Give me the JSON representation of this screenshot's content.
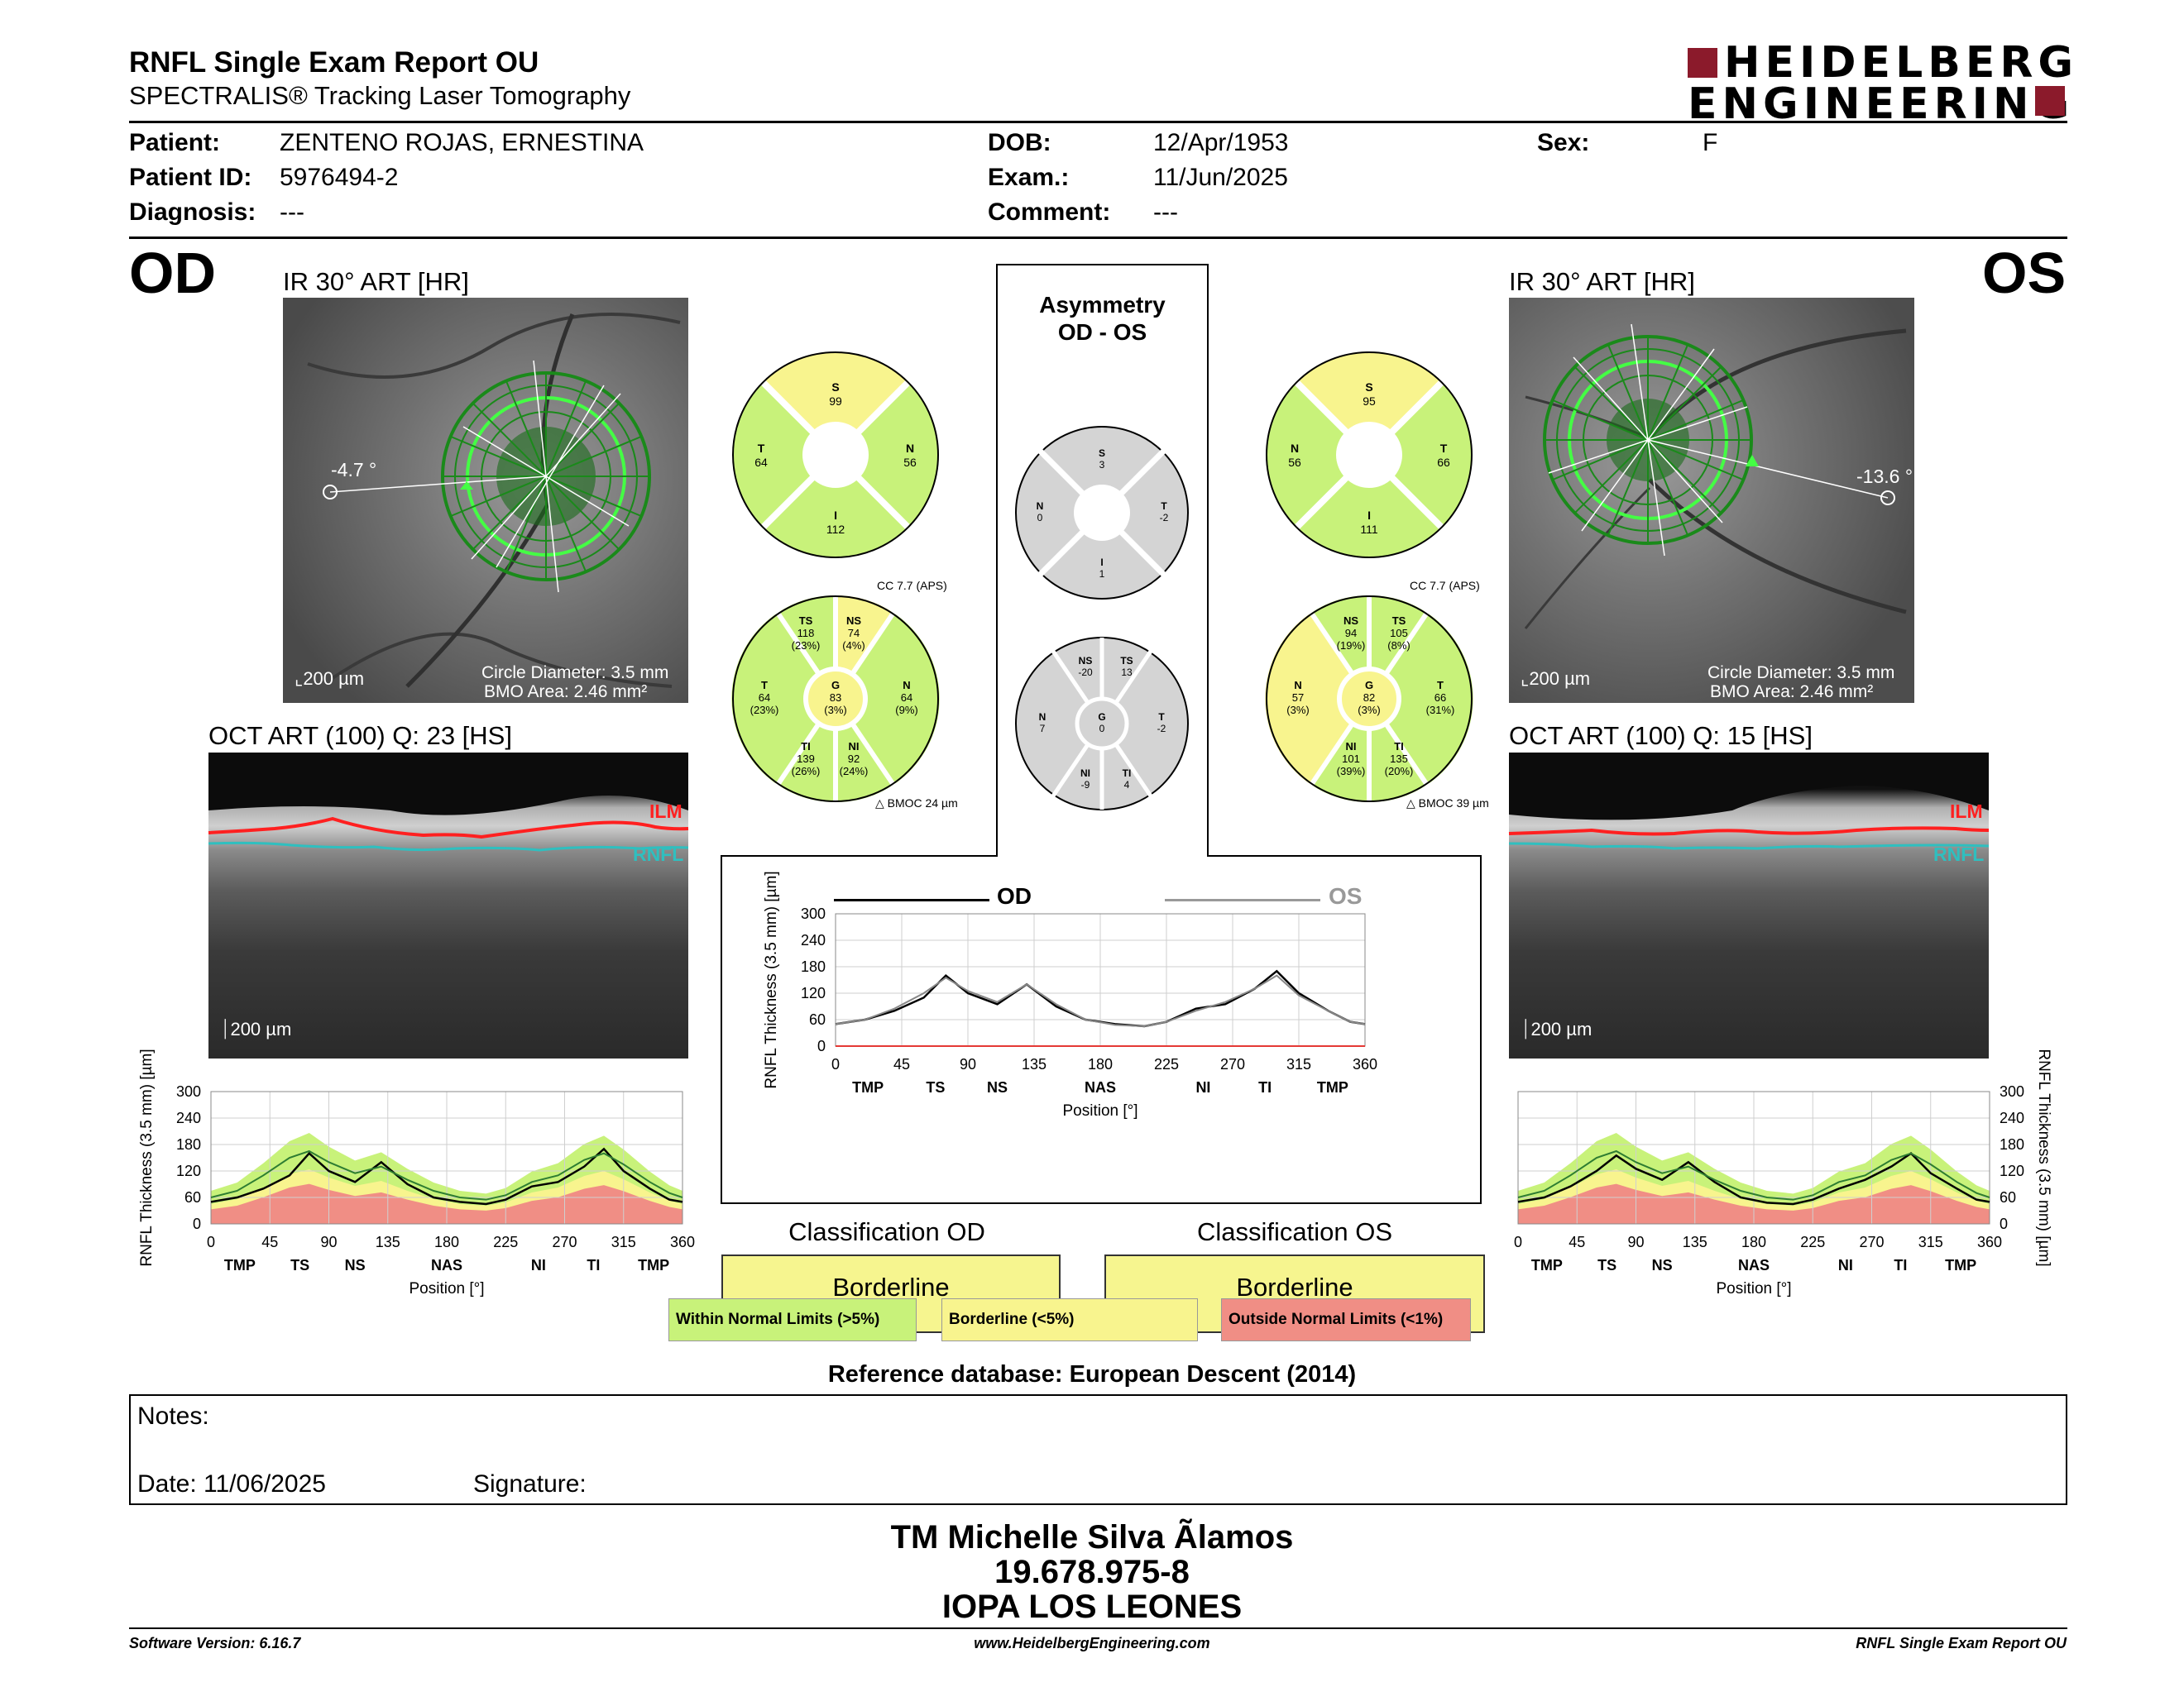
{
  "header": {
    "title": "RNFL Single Exam Report OU",
    "subtitle": "SPECTRALIS® Tracking Laser Tomography",
    "logo_line1": "HEIDELBERG",
    "logo_line2": "ENGINEERING"
  },
  "patient": {
    "patient_label": "Patient:",
    "patient_value": "ZENTENO ROJAS, ERNESTINA",
    "id_label": "Patient ID:",
    "id_value": "5976494-2",
    "diagnosis_label": "Diagnosis:",
    "diagnosis_value": "---",
    "dob_label": "DOB:",
    "dob_value": "12/Apr/1953",
    "exam_label": "Exam.:",
    "exam_value": "11/Jun/2025",
    "comment_label": "Comment:",
    "comment_value": "---",
    "sex_label": "Sex:",
    "sex_value": "F"
  },
  "od": {
    "eye": "OD",
    "ir_title": "IR 30° ART [HR]",
    "angle": "-4.7 °",
    "scale": "200 µm",
    "circle_diameter": "Circle Diameter: 3.5 mm",
    "bmo_area": "BMO Area: 2.46 mm²",
    "oct_title": "OCT ART (100) Q: 23 [HS]",
    "oct_scale": "200 µm",
    "ilm": "ILM",
    "rnfl": "RNFL",
    "sectors4": {
      "S": "99",
      "T": "64",
      "N": "56",
      "I": "112"
    },
    "sectors6": {
      "TS": [
        "118",
        "(23%)"
      ],
      "NS": [
        "74",
        "(4%)"
      ],
      "T": [
        "64",
        "(23%)"
      ],
      "G": [
        "83",
        "(3%)"
      ],
      "N": [
        "64",
        "(9%)"
      ],
      "TI": [
        "139",
        "(26%)"
      ],
      "NI": [
        "92",
        "(24%)"
      ]
    },
    "cc": "CC 7.7 (APS)",
    "bmoc": "BMOC 24 µm",
    "classification_title": "Classification OD",
    "classification": "Borderline"
  },
  "os": {
    "eye": "OS",
    "ir_title": "IR 30° ART [HR]",
    "angle": "-13.6 °",
    "scale": "200 µm",
    "circle_diameter": "Circle Diameter: 3.5 mm",
    "bmo_area": "BMO Area: 2.46 mm²",
    "oct_title": "OCT ART (100) Q: 15 [HS]",
    "oct_scale": "200 µm",
    "ilm": "ILM",
    "rnfl": "RNFL",
    "sectors4": {
      "S": "95",
      "N": "56",
      "T": "66",
      "I": "111"
    },
    "sectors6": {
      "NS": [
        "94",
        "(19%)"
      ],
      "TS": [
        "105",
        "(8%)"
      ],
      "N": [
        "57",
        "(3%)"
      ],
      "G": [
        "82",
        "(3%)"
      ],
      "T": [
        "66",
        "(31%)"
      ],
      "NI": [
        "101",
        "(39%)"
      ],
      "TI": [
        "135",
        "(20%)"
      ]
    },
    "cc": "CC 7.7 (APS)",
    "bmoc": "BMOC 39 µm",
    "classification_title": "Classification OS",
    "classification": "Borderline"
  },
  "asymmetry": {
    "title1": "Asymmetry",
    "title2": "OD - OS",
    "sectors4": {
      "S": "3",
      "N": "0",
      "T": "-2",
      "I": "1"
    },
    "sectors6": {
      "NS": "-20",
      "TS": "13",
      "N": "7",
      "G": "0",
      "T": "-2",
      "NI": "-9",
      "TI": "4"
    },
    "legend_od": "OD",
    "legend_os": "OS"
  },
  "chart_data": [
    {
      "type": "line",
      "id": "od_profile",
      "xlabel": "Position [°]",
      "ylabel": "RNFL Thickness (3.5 mm) [µm]",
      "xlim": [
        0,
        360
      ],
      "ylim": [
        0,
        300
      ],
      "x_ticks": [
        "0",
        "45",
        "90",
        "135",
        "180",
        "225",
        "270",
        "315",
        "360"
      ],
      "y_ticks": [
        "0",
        "60",
        "120",
        "180",
        "240",
        "300"
      ],
      "sector_labels": [
        "TMP",
        "TS",
        "NS",
        "NAS",
        "NI",
        "TI",
        "TMP"
      ],
      "x": [
        0,
        20,
        40,
        60,
        75,
        90,
        110,
        130,
        150,
        170,
        190,
        210,
        225,
        245,
        265,
        285,
        300,
        315,
        335,
        350,
        360
      ],
      "series": [
        {
          "name": "OD",
          "values": [
            50,
            60,
            80,
            110,
            160,
            120,
            95,
            140,
            90,
            60,
            50,
            45,
            55,
            85,
            95,
            130,
            170,
            120,
            80,
            55,
            50
          ]
        },
        {
          "name": "normal",
          "values": [
            60,
            75,
            110,
            150,
            165,
            140,
            115,
            130,
            100,
            75,
            60,
            55,
            65,
            95,
            110,
            145,
            160,
            135,
            95,
            70,
            60
          ]
        }
      ]
    },
    {
      "type": "line",
      "id": "os_profile",
      "xlabel": "Position [°]",
      "ylabel": "RNFL Thickness (3.5 mm) [µm]",
      "xlim": [
        0,
        360
      ],
      "ylim": [
        0,
        300
      ],
      "x_ticks": [
        "0",
        "45",
        "90",
        "135",
        "180",
        "225",
        "270",
        "315",
        "360"
      ],
      "y_ticks": [
        "0",
        "60",
        "120",
        "180",
        "240",
        "300"
      ],
      "sector_labels": [
        "TMP",
        "TS",
        "NS",
        "NAS",
        "NI",
        "TI",
        "TMP"
      ],
      "x": [
        0,
        20,
        40,
        60,
        75,
        90,
        110,
        130,
        150,
        170,
        190,
        210,
        225,
        245,
        265,
        285,
        300,
        315,
        335,
        350,
        360
      ],
      "series": [
        {
          "name": "OS",
          "values": [
            50,
            60,
            85,
            120,
            155,
            125,
            100,
            140,
            95,
            60,
            48,
            45,
            55,
            80,
            100,
            130,
            160,
            115,
            80,
            55,
            50
          ]
        },
        {
          "name": "normal",
          "values": [
            60,
            75,
            110,
            150,
            165,
            140,
            115,
            130,
            100,
            75,
            60,
            55,
            65,
            95,
            110,
            145,
            160,
            135,
            95,
            70,
            60
          ]
        }
      ]
    },
    {
      "type": "line",
      "id": "asymmetry_profile",
      "xlabel": "Position [°]",
      "ylabel": "RNFL Thickness (3.5 mm) [µm]",
      "xlim": [
        0,
        360
      ],
      "ylim": [
        0,
        300
      ],
      "x_ticks": [
        "0",
        "45",
        "90",
        "135",
        "180",
        "225",
        "270",
        "315",
        "360"
      ],
      "y_ticks": [
        "0",
        "60",
        "120",
        "180",
        "240",
        "300"
      ],
      "sector_labels": [
        "TMP",
        "TS",
        "NS",
        "NAS",
        "NI",
        "TI",
        "TMP"
      ],
      "x": [
        0,
        20,
        40,
        60,
        75,
        90,
        110,
        130,
        150,
        170,
        190,
        210,
        225,
        245,
        265,
        285,
        300,
        315,
        335,
        350,
        360
      ],
      "series": [
        {
          "name": "OD",
          "values": [
            50,
            60,
            80,
            110,
            160,
            120,
            95,
            140,
            90,
            60,
            50,
            45,
            55,
            85,
            95,
            130,
            170,
            120,
            80,
            55,
            50
          ]
        },
        {
          "name": "OS",
          "values": [
            50,
            60,
            85,
            120,
            155,
            125,
            100,
            140,
            95,
            60,
            48,
            45,
            55,
            80,
            100,
            130,
            160,
            115,
            80,
            55,
            50
          ]
        }
      ]
    }
  ],
  "legend": {
    "wnl": "Within Normal Limits (>5%)",
    "bl": "Borderline (<5%)",
    "onl": "Outside Normal Limits (<1%)",
    "colors": {
      "wnl": "#c8f27a",
      "bl": "#f8f48e",
      "onl": "#f08e85"
    }
  },
  "reference_db": "Reference database: European Descent (2014)",
  "notes": {
    "notes_label": "Notes:",
    "date_label": "Date: 11/06/2025",
    "signature_label": "Signature:"
  },
  "signatory": {
    "name": "TM Michelle Silva Ãlamos",
    "rut": "19.678.975-8",
    "clinic": "IOPA LOS LEONES"
  },
  "footer": {
    "software": "Software Version: 6.16.7",
    "website": "www.HeidelbergEngineering.com",
    "report": "RNFL Single Exam Report OU"
  }
}
